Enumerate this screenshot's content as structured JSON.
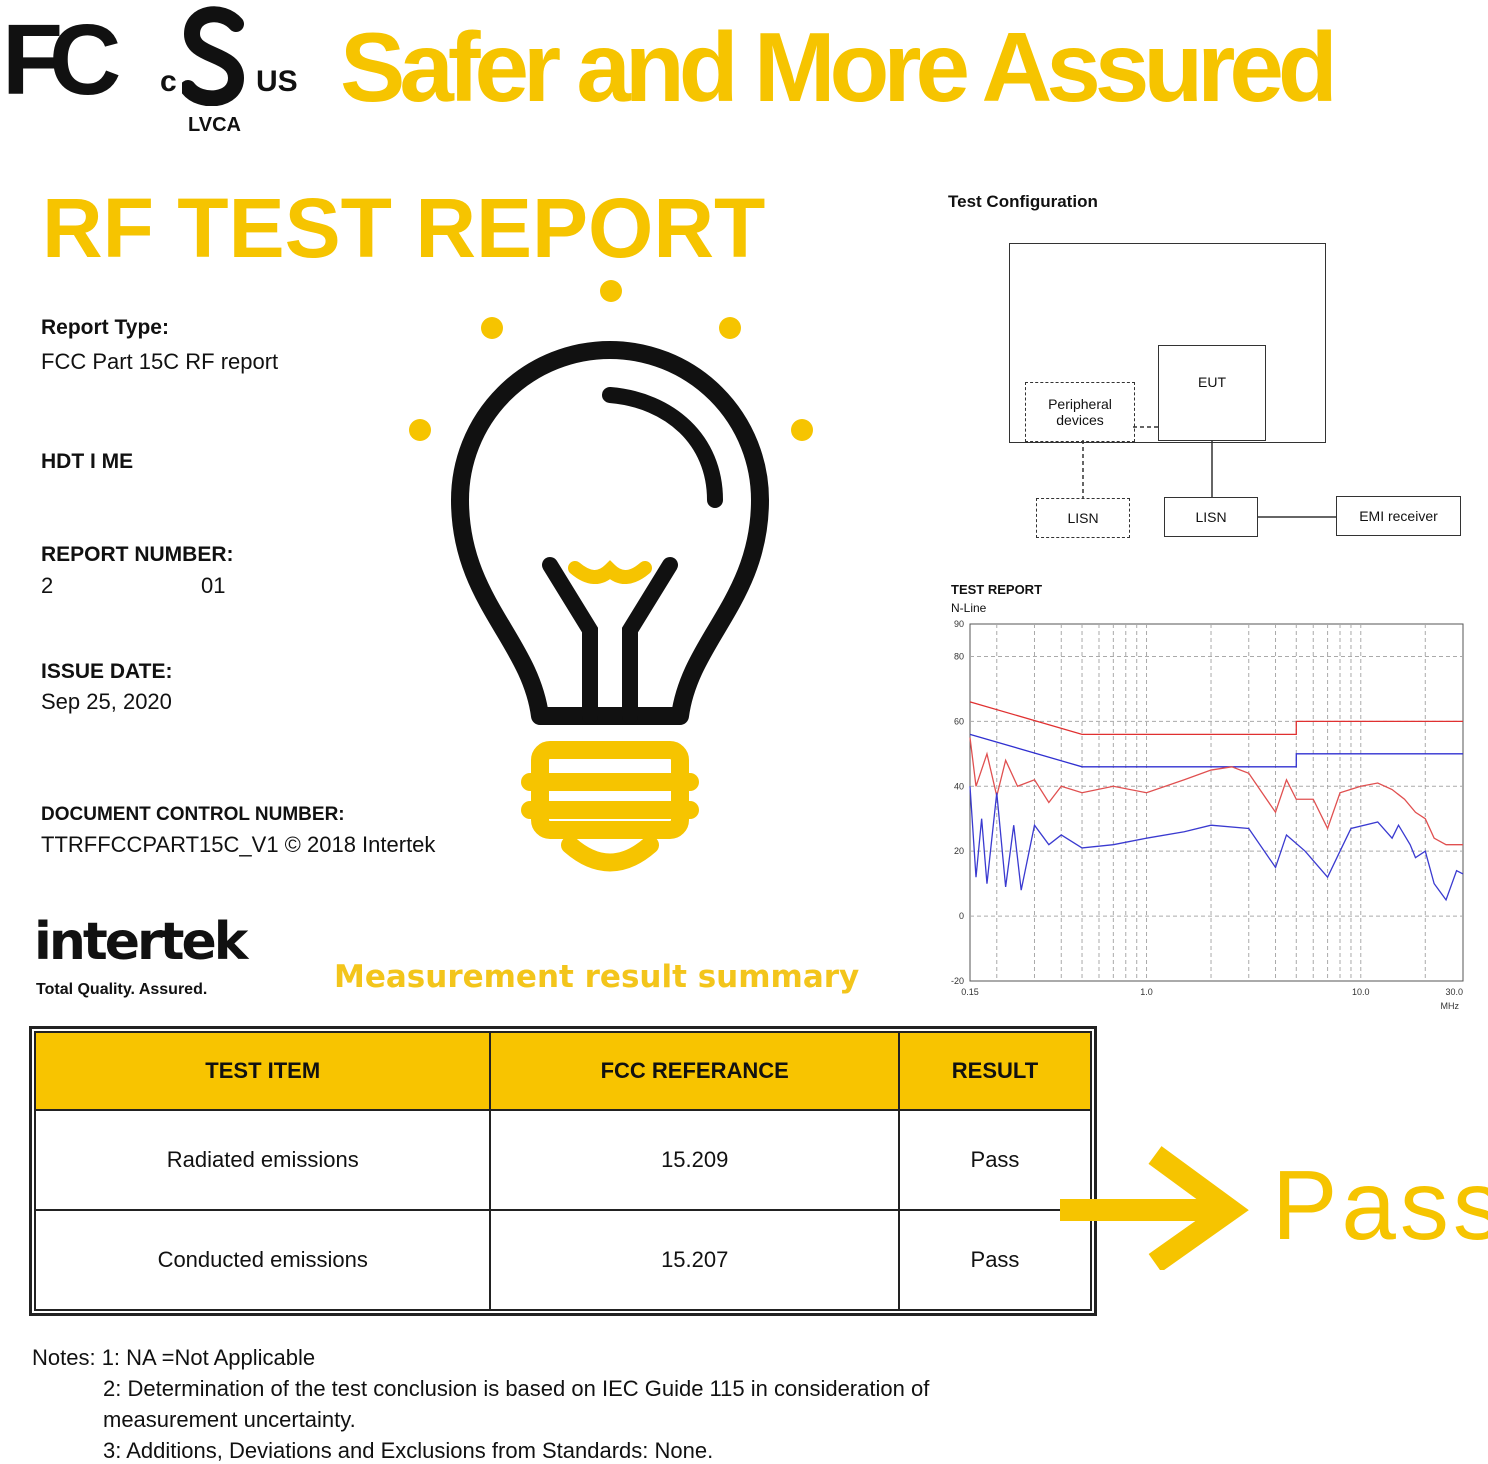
{
  "header": {
    "fcc_logo": "FC",
    "csa_c": "c",
    "csa_us": "US",
    "csa_lvca": "LVCA",
    "tagline": "Safer and More Assured"
  },
  "report": {
    "title": "RF TEST REPORT",
    "type_label": "Report Type:",
    "type_value": "FCC Part 15C RF report",
    "brand": "HDT I ME",
    "number_label": "REPORT NUMBER:",
    "number_start": "2",
    "number_end": "01",
    "date_label": "ISSUE DATE:",
    "date_value": "Sep 25, 2020",
    "doc_label": "DOCUMENT CONTROL NUMBER:",
    "doc_value": "TTRFFCCPART15C_V1 © 2018 Intertek"
  },
  "intertek": {
    "logo": "intertek",
    "slogan": "Total Quality. Assured."
  },
  "summary_title": "Measurement result summary",
  "config": {
    "title": "Test Configuration",
    "eut": "EUT",
    "peripheral": "Peripheral devices",
    "lisn1": "LISN",
    "lisn2": "LISN",
    "receiver": "EMI receiver"
  },
  "chart_data": {
    "type": "line",
    "title": "TEST REPORT",
    "subtitle": "N-Line",
    "xlabel": "MHz",
    "xscale": "log",
    "xlim": [
      0.15,
      30
    ],
    "ylim": [
      -20,
      90
    ],
    "grid": true,
    "xticks": [
      "0.15",
      "1.0",
      "10.0",
      "30.0"
    ],
    "yticks": [
      "90",
      "80",
      "60",
      "40",
      "20",
      "0",
      "-20"
    ],
    "series": [
      {
        "color": "#e03030",
        "x": [
          0.15,
          0.5,
          0.5,
          5,
          5,
          30
        ],
        "y": [
          66,
          56,
          56,
          56,
          60,
          60
        ]
      },
      {
        "color": "#3030d0",
        "x": [
          0.15,
          0.5,
          0.5,
          5,
          5,
          30
        ],
        "y": [
          56,
          46,
          46,
          46,
          50,
          50
        ]
      },
      {
        "color": "#e05050",
        "x": [
          0.15,
          0.16,
          0.18,
          0.2,
          0.22,
          0.25,
          0.3,
          0.35,
          0.4,
          0.5,
          0.7,
          1.0,
          1.5,
          2,
          2.5,
          3,
          4,
          4.5,
          5,
          6,
          7,
          8,
          10,
          12,
          14,
          16,
          18,
          20,
          22,
          25,
          30
        ],
        "y": [
          55,
          40,
          50,
          37,
          48,
          40,
          42,
          35,
          40,
          38,
          40,
          38,
          42,
          45,
          46,
          44,
          32,
          42,
          36,
          36,
          27,
          38,
          40,
          41,
          39,
          36,
          32,
          30,
          24,
          22,
          22
        ]
      },
      {
        "color": "#3a3ad0",
        "x": [
          0.15,
          0.16,
          0.17,
          0.18,
          0.2,
          0.22,
          0.24,
          0.26,
          0.3,
          0.35,
          0.4,
          0.5,
          0.7,
          1.0,
          1.5,
          2,
          3,
          4,
          4.5,
          5.5,
          7,
          8,
          9,
          12,
          14,
          15,
          17,
          18,
          20,
          22,
          25,
          28,
          30
        ],
        "y": [
          40,
          12,
          30,
          10,
          38,
          9,
          28,
          8,
          28,
          22,
          25,
          21,
          22,
          24,
          26,
          28,
          27,
          15,
          25,
          20,
          12,
          20,
          27,
          29,
          24,
          28,
          22,
          18,
          20,
          10,
          5,
          14,
          13
        ]
      }
    ]
  },
  "table": {
    "headers": [
      "TEST ITEM",
      "FCC REFERANCE",
      "RESULT"
    ],
    "rows": [
      [
        "Radiated emissions",
        "15.209",
        "Pass"
      ],
      [
        "Conducted emissions",
        "15.207",
        "Pass"
      ]
    ]
  },
  "pass_label": "Pass",
  "notes": {
    "n1": "Notes: 1: NA =Not Applicable",
    "n2": "2: Determination of the test conclusion is based on IEC Guide 115 in consideration of",
    "n2b": "measurement uncertainty.",
    "n3": "3: Additions, Deviations and Exclusions from Standards: None."
  },
  "colors": {
    "accent": "#f6c400"
  }
}
